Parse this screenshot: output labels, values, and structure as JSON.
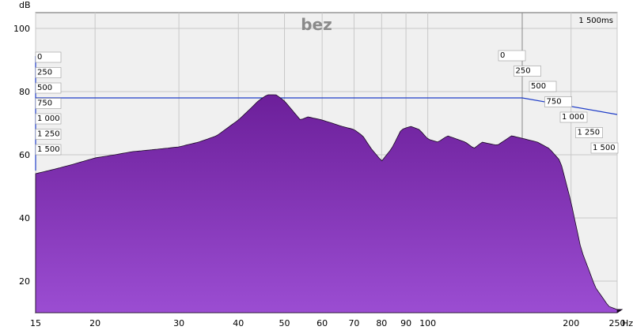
{
  "chart_data": {
    "type": "waterfall",
    "title": "bez",
    "ylabel": "dB",
    "xlabel": "Hz",
    "x_scale": "log",
    "xlim": [
      15,
      250
    ],
    "ylim": [
      10,
      105
    ],
    "y_ticks": [
      {
        "value": 100,
        "label": "100"
      },
      {
        "value": 80,
        "label": "80"
      },
      {
        "value": 60,
        "label": "60"
      },
      {
        "value": 40,
        "label": "40"
      },
      {
        "value": 20,
        "label": "20"
      }
    ],
    "x_ticks": [
      {
        "value": 15,
        "label": "15"
      },
      {
        "value": 20,
        "label": "20"
      },
      {
        "value": 30,
        "label": "30"
      },
      {
        "value": 40,
        "label": "40"
      },
      {
        "value": 50,
        "label": "50"
      },
      {
        "value": 60,
        "label": "60"
      },
      {
        "value": 70,
        "label": "70"
      },
      {
        "value": 80,
        "label": "80"
      },
      {
        "value": 90,
        "label": "90"
      },
      {
        "value": 100,
        "label": "100"
      },
      {
        "value": 200,
        "label": "200"
      },
      {
        "value": 250,
        "label": "250"
      }
    ],
    "time_axis_ms": [
      {
        "value": 0,
        "label": "0"
      },
      {
        "value": 250,
        "label": "250"
      },
      {
        "value": 500,
        "label": "500"
      },
      {
        "value": 750,
        "label": "750"
      },
      {
        "value": 1000,
        "label": "1 000"
      },
      {
        "value": 1250,
        "label": "1 250"
      },
      {
        "value": 1500,
        "label": "1 500"
      }
    ],
    "time_max_label": "1 500ms",
    "reference_level_db": 78,
    "slices": 32,
    "front_spectrum": {
      "x": [
        15,
        16,
        17,
        18,
        20,
        22,
        24,
        26,
        28,
        30,
        33,
        36,
        40,
        42,
        44,
        46,
        48,
        50,
        52,
        54,
        56,
        58,
        60,
        63,
        66,
        70,
        73,
        76,
        80,
        84,
        88,
        92,
        96,
        100,
        105,
        110,
        115,
        120,
        125,
        130,
        140,
        150,
        160,
        170,
        180,
        190,
        200,
        210,
        225,
        240,
        250
      ],
      "y": [
        54,
        55,
        56,
        57,
        59,
        60,
        61,
        61.5,
        62,
        62.5,
        64,
        66,
        71,
        74,
        77,
        79,
        79,
        77,
        74,
        71,
        72,
        71.5,
        71,
        70,
        69,
        68,
        66,
        62,
        58,
        62,
        68,
        69,
        68,
        65,
        64,
        66,
        65,
        64,
        62,
        64,
        63,
        66,
        65,
        64,
        62,
        58,
        45,
        30,
        18,
        12,
        11
      ]
    },
    "color": "#7c2ca9",
    "ref_line_color": "#1f3dc8"
  }
}
